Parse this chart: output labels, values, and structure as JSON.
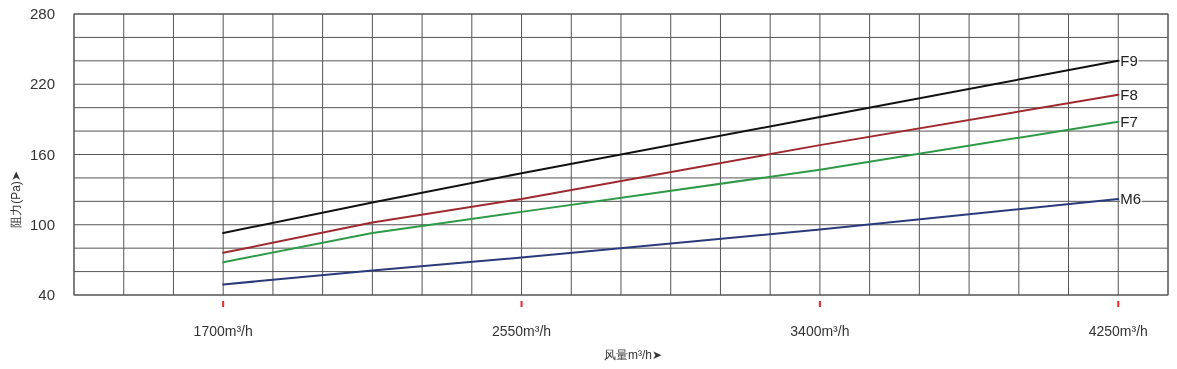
{
  "chart_data": {
    "type": "line",
    "xlabel": "风量m³/h➤",
    "ylabel": "阻力(Pa)➤",
    "x": [
      1700,
      2125,
      2550,
      3400,
      4250
    ],
    "series": [
      {
        "name": "F9",
        "color": "#111111",
        "values": [
          93,
          119,
          144,
          192,
          240
        ]
      },
      {
        "name": "F8",
        "color": "#9e2a2f",
        "values": [
          76,
          102,
          122,
          168,
          211
        ]
      },
      {
        "name": "F7",
        "color": "#2e9a48",
        "values": [
          68,
          93,
          111,
          147,
          188
        ]
      },
      {
        "name": "M6",
        "color": "#2b3a7a",
        "values": [
          49,
          61,
          72,
          96,
          122
        ]
      }
    ],
    "xlim": [
      1275,
      4391.7
    ],
    "xticks": [
      {
        "value": 1275,
        "label": null
      },
      {
        "value": 1416.7,
        "label": null
      },
      {
        "value": 1558.3,
        "label": null
      },
      {
        "value": 1700,
        "label": "1700m³/h"
      },
      {
        "value": 1841.7,
        "label": null
      },
      {
        "value": 1983.3,
        "label": null
      },
      {
        "value": 2125,
        "label": null
      },
      {
        "value": 2266.7,
        "label": null
      },
      {
        "value": 2408.3,
        "label": null
      },
      {
        "value": 2550,
        "label": "2550m³/h"
      },
      {
        "value": 2691.7,
        "label": null
      },
      {
        "value": 2833.3,
        "label": null
      },
      {
        "value": 2975,
        "label": null
      },
      {
        "value": 3116.7,
        "label": null
      },
      {
        "value": 3258.3,
        "label": null
      },
      {
        "value": 3400,
        "label": "3400m³/h"
      },
      {
        "value": 3541.7,
        "label": null
      },
      {
        "value": 3683.3,
        "label": null
      },
      {
        "value": 3825,
        "label": null
      },
      {
        "value": 3966.7,
        "label": null
      },
      {
        "value": 4108.3,
        "label": null
      },
      {
        "value": 4250,
        "label": "4250m³/h"
      },
      {
        "value": 4391.7,
        "label": null
      }
    ],
    "ylim": [
      40,
      280
    ],
    "yticks": [
      40,
      {
        "value": 60,
        "label": null
      },
      {
        "value": 80,
        "label": null
      },
      100,
      {
        "value": 120,
        "label": null
      },
      {
        "value": 140,
        "label": null
      },
      160,
      {
        "value": 180,
        "label": null
      },
      {
        "value": 200,
        "label": null
      },
      220,
      {
        "value": 240,
        "label": null
      },
      {
        "value": 260,
        "label": null
      },
      280
    ],
    "grid": true
  }
}
